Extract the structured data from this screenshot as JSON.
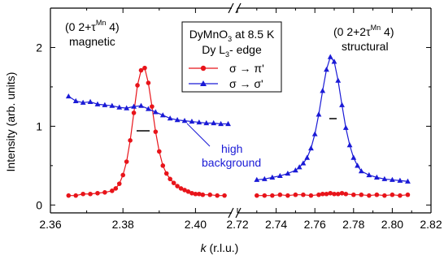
{
  "chart_data": {
    "type": "scatter",
    "title": "",
    "xlabel_italic": "k",
    "xlabel_rest": " (r.l.u.)",
    "ylabel": "Intensity (arb. units)",
    "ylim": [
      -0.1,
      2.5
    ],
    "yticks": [
      "0",
      "1",
      "2"
    ],
    "yticks_values": [
      0,
      1,
      2
    ],
    "x_break": true,
    "x_segments": [
      {
        "range": [
          2.36,
          2.41
        ],
        "ticks": [
          2.36,
          2.38,
          2.4
        ],
        "tick_labels": [
          "2.36",
          "2.38",
          "2.40"
        ]
      },
      {
        "range": [
          2.72,
          2.82
        ],
        "ticks": [
          2.72,
          2.74,
          2.76,
          2.78,
          2.8,
          2.82
        ],
        "tick_labels": [
          "2.72",
          "2.74",
          "2.76",
          "2.78",
          "2.80",
          "2.82"
        ]
      }
    ],
    "legend": {
      "line1_main": "DyMnO",
      "line1_sub": "3",
      "line1_rest": " at 8.5 K",
      "line2_main": "Dy L",
      "line2_sub": "3",
      "line2_rest": "- edge",
      "items": [
        "σ → π'",
        "σ → σ'"
      ],
      "position": "top-center"
    },
    "annotations": {
      "left_peak": {
        "line1": "(0 2+τ",
        "sup": "Mn",
        "line1_end": " 4)",
        "line2": "magnetic"
      },
      "right_peak": {
        "line1": "(0 2+2τ",
        "sup": "Mn",
        "line1_end": " 4)",
        "line2": "structural"
      },
      "background": {
        "line1": "high",
        "line2": "background"
      }
    },
    "colors": {
      "sigma_pi": "#e8141a",
      "sigma_sigma": "#1a1ad6"
    },
    "series": [
      {
        "name": "σ → π'",
        "segment": 0,
        "x": [
          2.365,
          2.367,
          2.369,
          2.371,
          2.373,
          2.375,
          2.377,
          2.378,
          2.379,
          2.38,
          2.381,
          2.382,
          2.383,
          2.384,
          2.385,
          2.386,
          2.387,
          2.388,
          2.389,
          2.39,
          2.391,
          2.392,
          2.393,
          2.394,
          2.395,
          2.396,
          2.397,
          2.398,
          2.399,
          2.4,
          2.401,
          2.402,
          2.404,
          2.406,
          2.408
        ],
        "y": [
          0.12,
          0.12,
          0.14,
          0.14,
          0.15,
          0.16,
          0.18,
          0.21,
          0.27,
          0.38,
          0.55,
          0.82,
          1.17,
          1.52,
          1.71,
          1.74,
          1.55,
          1.25,
          0.93,
          0.68,
          0.5,
          0.4,
          0.33,
          0.28,
          0.24,
          0.21,
          0.19,
          0.17,
          0.15,
          0.14,
          0.14,
          0.13,
          0.13,
          0.12,
          0.12
        ]
      },
      {
        "name": "σ → π'",
        "segment": 1,
        "x": [
          2.73,
          2.734,
          2.738,
          2.742,
          2.746,
          2.75,
          2.754,
          2.758,
          2.762,
          2.764,
          2.766,
          2.768,
          2.77,
          2.772,
          2.774,
          2.776,
          2.78,
          2.784,
          2.788,
          2.792,
          2.796,
          2.8,
          2.804,
          2.808
        ],
        "y": [
          0.12,
          0.12,
          0.12,
          0.13,
          0.12,
          0.13,
          0.13,
          0.12,
          0.13,
          0.14,
          0.14,
          0.15,
          0.14,
          0.14,
          0.15,
          0.14,
          0.13,
          0.13,
          0.12,
          0.13,
          0.12,
          0.13,
          0.12,
          0.13
        ]
      },
      {
        "name": "σ → σ'",
        "segment": 0,
        "x": [
          2.365,
          2.367,
          2.369,
          2.371,
          2.373,
          2.375,
          2.377,
          2.379,
          2.381,
          2.383,
          2.385,
          2.387,
          2.389,
          2.391,
          2.393,
          2.395,
          2.397,
          2.399,
          2.401,
          2.403,
          2.405,
          2.407,
          2.409
        ],
        "y": [
          1.38,
          1.32,
          1.3,
          1.31,
          1.28,
          1.27,
          1.26,
          1.24,
          1.23,
          1.25,
          1.26,
          1.22,
          1.18,
          1.14,
          1.1,
          1.08,
          1.07,
          1.06,
          1.05,
          1.04,
          1.04,
          1.03,
          1.03
        ]
      },
      {
        "name": "σ → σ'",
        "segment": 1,
        "x": [
          2.73,
          2.734,
          2.738,
          2.742,
          2.746,
          2.75,
          2.752,
          2.754,
          2.756,
          2.758,
          2.76,
          2.762,
          2.764,
          2.766,
          2.768,
          2.77,
          2.772,
          2.774,
          2.776,
          2.778,
          2.78,
          2.782,
          2.784,
          2.788,
          2.792,
          2.796,
          2.8,
          2.804,
          2.808
        ],
        "y": [
          0.32,
          0.33,
          0.35,
          0.37,
          0.4,
          0.44,
          0.48,
          0.53,
          0.6,
          0.72,
          0.9,
          1.15,
          1.45,
          1.72,
          1.88,
          1.82,
          1.58,
          1.27,
          0.98,
          0.76,
          0.6,
          0.5,
          0.43,
          0.38,
          0.35,
          0.33,
          0.32,
          0.31,
          0.3
        ]
      }
    ]
  }
}
